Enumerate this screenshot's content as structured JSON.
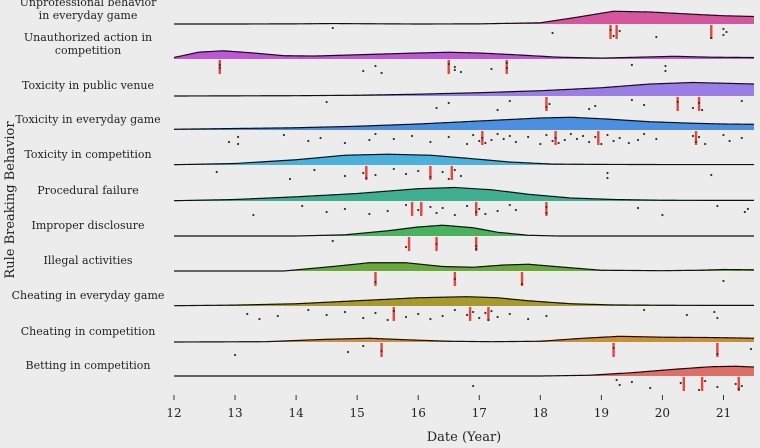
{
  "chart_data": {
    "type": "ridgeline",
    "xlabel": "Date (Year)",
    "ylabel": "Rule Breaking Behavior",
    "xlim": [
      12,
      21.5
    ],
    "xticks": [
      "12",
      "13",
      "14",
      "15",
      "16",
      "17",
      "18",
      "19",
      "20",
      "21"
    ],
    "grid": false,
    "legend": "none",
    "median_marker_color": "#e8453c",
    "point_color": "#333333",
    "series": [
      {
        "name": "Unprofessional behavior in everyday game",
        "label_lines": [
          "Unprofessional behavior",
          "in everyday game"
        ],
        "color": "#d6559f",
        "density": [
          [
            12,
            0
          ],
          [
            13,
            0
          ],
          [
            14,
            0.01
          ],
          [
            14.6,
            0.03
          ],
          [
            15,
            0.02
          ],
          [
            16,
            0
          ],
          [
            17,
            0.01
          ],
          [
            18,
            0.08
          ],
          [
            18.6,
            0.45
          ],
          [
            19.2,
            0.85
          ],
          [
            19.8,
            0.8
          ],
          [
            20.5,
            0.65
          ],
          [
            21,
            0.55
          ],
          [
            21.5,
            0.5
          ]
        ],
        "points": [
          14.6,
          18.2,
          19.15,
          19.2,
          19.3,
          20.8,
          21.0,
          21.0,
          21.05,
          19.9
        ],
        "medians": [
          19.15,
          19.25,
          20.8
        ]
      },
      {
        "name": "Unauthorized action in competition",
        "label_lines": [
          "Unauthorized action in",
          "competition"
        ],
        "color": "#c055d8",
        "density": [
          [
            12,
            0.1
          ],
          [
            12.4,
            0.45
          ],
          [
            12.8,
            0.55
          ],
          [
            13.3,
            0.4
          ],
          [
            13.8,
            0.22
          ],
          [
            14.3,
            0.2
          ],
          [
            15,
            0.28
          ],
          [
            15.8,
            0.38
          ],
          [
            16.5,
            0.45
          ],
          [
            17,
            0.4
          ],
          [
            17.6,
            0.28
          ],
          [
            18.3,
            0.12
          ],
          [
            19,
            0.06
          ],
          [
            19.6,
            0.12
          ],
          [
            20.2,
            0.18
          ],
          [
            20.8,
            0.12
          ],
          [
            21.5,
            0.1
          ]
        ],
        "points": [
          12.75,
          12.75,
          15.1,
          15.3,
          15.4,
          16.5,
          16.6,
          16.6,
          16.7,
          17.2,
          17.45,
          17.45,
          19.5,
          20.05,
          20.05
        ],
        "medians": [
          12.75,
          16.5,
          17.45
        ]
      },
      {
        "name": "Toxicity in public venue",
        "label_lines": [
          "Toxicity in public venue"
        ],
        "color": "#9b7de8",
        "density": [
          [
            12,
            0
          ],
          [
            14,
            0.02
          ],
          [
            15,
            0.05
          ],
          [
            16,
            0.12
          ],
          [
            17,
            0.22
          ],
          [
            18,
            0.35
          ],
          [
            19,
            0.55
          ],
          [
            19.8,
            0.8
          ],
          [
            20.5,
            0.9
          ],
          [
            21,
            0.85
          ],
          [
            21.5,
            0.8
          ]
        ],
        "points": [
          14.5,
          16.3,
          16.5,
          17.3,
          17.5,
          18.1,
          18.15,
          18.8,
          18.9,
          19.5,
          19.7,
          20.25,
          20.5,
          20.6,
          20.65,
          21.3
        ],
        "medians": [
          18.1,
          20.25,
          20.6
        ]
      },
      {
        "name": "Toxicity in everyday game",
        "label_lines": [
          "Toxicity in everyday game"
        ],
        "color": "#4a8fe0",
        "density": [
          [
            12,
            0.05
          ],
          [
            13,
            0.1
          ],
          [
            14,
            0.15
          ],
          [
            15,
            0.25
          ],
          [
            16,
            0.4
          ],
          [
            17,
            0.6
          ],
          [
            18,
            0.8
          ],
          [
            18.5,
            0.85
          ],
          [
            19,
            0.75
          ],
          [
            19.8,
            0.55
          ],
          [
            20.5,
            0.45
          ],
          [
            21,
            0.4
          ],
          [
            21.5,
            0.38
          ]
        ],
        "points": [
          12.9,
          13.05,
          13.05,
          13.8,
          14.2,
          14.4,
          14.8,
          15.2,
          15.3,
          15.6,
          15.9,
          16.2,
          16.5,
          16.8,
          16.9,
          17.0,
          17.05,
          17.1,
          17.2,
          17.3,
          17.4,
          17.5,
          17.6,
          17.8,
          18.0,
          18.1,
          18.2,
          18.25,
          18.3,
          18.4,
          18.5,
          18.6,
          18.7,
          18.8,
          18.9,
          19.0,
          19.1,
          19.2,
          19.3,
          19.45,
          19.6,
          19.7,
          19.9,
          20.5,
          20.55,
          20.6,
          20.7,
          21.0,
          21.1,
          21.3
        ],
        "medians": [
          17.05,
          18.25,
          18.95,
          20.55
        ]
      },
      {
        "name": "Toxicity in competition",
        "label_lines": [
          "Toxicity in competition"
        ],
        "color": "#4ab0dc",
        "density": [
          [
            12,
            0.02
          ],
          [
            13,
            0.1
          ],
          [
            14,
            0.35
          ],
          [
            14.8,
            0.65
          ],
          [
            15.5,
            0.72
          ],
          [
            16.2,
            0.65
          ],
          [
            16.8,
            0.45
          ],
          [
            17.5,
            0.2
          ],
          [
            18.2,
            0.06
          ],
          [
            19,
            0.04
          ],
          [
            20,
            0.03
          ],
          [
            21,
            0.03
          ],
          [
            21.5,
            0.03
          ]
        ],
        "points": [
          12.7,
          13.9,
          14.3,
          14.8,
          15.1,
          15.15,
          15.3,
          15.6,
          15.8,
          16.0,
          16.2,
          16.4,
          16.5,
          16.6,
          16.7,
          19.1,
          19.1,
          20.8
        ],
        "medians": [
          15.15,
          16.2,
          16.55
        ]
      },
      {
        "name": "Procedural failure",
        "label_lines": [
          "Procedural failure"
        ],
        "color": "#3fb08f",
        "density": [
          [
            12,
            0.02
          ],
          [
            13,
            0.1
          ],
          [
            14,
            0.28
          ],
          [
            15,
            0.5
          ],
          [
            16,
            0.82
          ],
          [
            16.6,
            0.9
          ],
          [
            17.2,
            0.75
          ],
          [
            17.8,
            0.45
          ],
          [
            18.5,
            0.2
          ],
          [
            19.2,
            0.1
          ],
          [
            20,
            0.05
          ],
          [
            21,
            0.04
          ],
          [
            21.5,
            0.04
          ]
        ],
        "points": [
          13.3,
          14.1,
          14.5,
          14.8,
          15.2,
          15.5,
          15.8,
          16.0,
          16.2,
          16.3,
          16.4,
          16.6,
          16.8,
          16.95,
          17.0,
          17.1,
          17.3,
          17.5,
          17.6,
          18.1,
          18.1,
          19.6,
          20.0,
          20.9,
          21.35,
          21.4
        ],
        "medians": [
          15.9,
          16.05,
          16.95,
          18.1
        ]
      },
      {
        "name": "Improper disclosure",
        "label_lines": [
          "Improper disclosure"
        ],
        "color": "#48b25e",
        "density": [
          [
            12,
            0
          ],
          [
            14,
            0
          ],
          [
            14.8,
            0.08
          ],
          [
            15.5,
            0.35
          ],
          [
            16,
            0.6
          ],
          [
            16.4,
            0.72
          ],
          [
            16.9,
            0.55
          ],
          [
            17.3,
            0.25
          ],
          [
            17.8,
            0.05
          ],
          [
            18.3,
            0
          ],
          [
            21.5,
            0
          ]
        ],
        "points": [
          14.6,
          15.8,
          16.3,
          16.95,
          16.95
        ],
        "medians": [
          15.85,
          16.3,
          16.95
        ]
      },
      {
        "name": "Illegal activities",
        "label_lines": [
          "Illegal activities"
        ],
        "color": "#69a83a",
        "density": [
          [
            12,
            0
          ],
          [
            13.8,
            0
          ],
          [
            14.6,
            0.3
          ],
          [
            15.2,
            0.55
          ],
          [
            15.8,
            0.55
          ],
          [
            16.4,
            0.3
          ],
          [
            16.9,
            0.25
          ],
          [
            17.4,
            0.4
          ],
          [
            17.8,
            0.45
          ],
          [
            18.3,
            0.28
          ],
          [
            19,
            0.05
          ],
          [
            20,
            0.02
          ],
          [
            20.6,
            0.05
          ],
          [
            21,
            0.1
          ],
          [
            21.5,
            0.08
          ]
        ],
        "points": [
          15.3,
          16.6,
          17.7,
          21.0
        ],
        "medians": [
          15.3,
          16.6,
          17.7
        ]
      },
      {
        "name": "Cheating in everyday game",
        "label_lines": [
          "Cheating in everyday game"
        ],
        "color": "#a79a2a",
        "density": [
          [
            12,
            0.02
          ],
          [
            13,
            0.06
          ],
          [
            14,
            0.15
          ],
          [
            15,
            0.35
          ],
          [
            16,
            0.55
          ],
          [
            16.8,
            0.62
          ],
          [
            17.3,
            0.55
          ],
          [
            17.8,
            0.35
          ],
          [
            18.5,
            0.15
          ],
          [
            19.2,
            0.07
          ],
          [
            20,
            0.05
          ],
          [
            21,
            0.04
          ],
          [
            21.5,
            0.04
          ]
        ],
        "points": [
          13.2,
          13.4,
          13.7,
          14.2,
          14.5,
          14.8,
          15.1,
          15.3,
          15.5,
          15.6,
          15.8,
          16.0,
          16.2,
          16.4,
          16.6,
          16.8,
          16.9,
          17.0,
          17.1,
          17.15,
          17.2,
          17.3,
          17.5,
          17.8,
          18.1,
          19.7,
          20.4,
          20.85,
          20.9
        ],
        "medians": [
          15.6,
          16.85,
          17.15
        ]
      },
      {
        "name": "Cheating in competition",
        "label_lines": [
          "Cheating in competition"
        ],
        "color": "#cf8d35",
        "density": [
          [
            12,
            0
          ],
          [
            13.5,
            0.02
          ],
          [
            14.5,
            0.18
          ],
          [
            15.2,
            0.25
          ],
          [
            15.8,
            0.15
          ],
          [
            16.5,
            0.05
          ],
          [
            17.2,
            0.02
          ],
          [
            18,
            0.05
          ],
          [
            18.7,
            0.25
          ],
          [
            19.3,
            0.38
          ],
          [
            20,
            0.32
          ],
          [
            20.7,
            0.3
          ],
          [
            21.1,
            0.28
          ],
          [
            21.5,
            0.25
          ]
        ],
        "points": [
          13.0,
          14.85,
          15.1,
          15.4,
          19.2,
          20.9,
          21.45
        ],
        "medians": [
          15.4,
          19.2,
          20.9
        ]
      },
      {
        "name": "Betting in competition",
        "label_lines": [
          "Betting in competition"
        ],
        "color": "#de6e68",
        "density": [
          [
            12,
            0
          ],
          [
            18,
            0
          ],
          [
            18.8,
            0.05
          ],
          [
            19.5,
            0.22
          ],
          [
            20.2,
            0.45
          ],
          [
            20.8,
            0.62
          ],
          [
            21.2,
            0.65
          ],
          [
            21.5,
            0.6
          ]
        ],
        "points": [
          16.9,
          19.25,
          19.3,
          19.5,
          19.8,
          20.3,
          20.6,
          20.7,
          20.9,
          21.2,
          21.25,
          21.3
        ],
        "medians": [
          20.35,
          20.65,
          21.25
        ]
      }
    ]
  }
}
